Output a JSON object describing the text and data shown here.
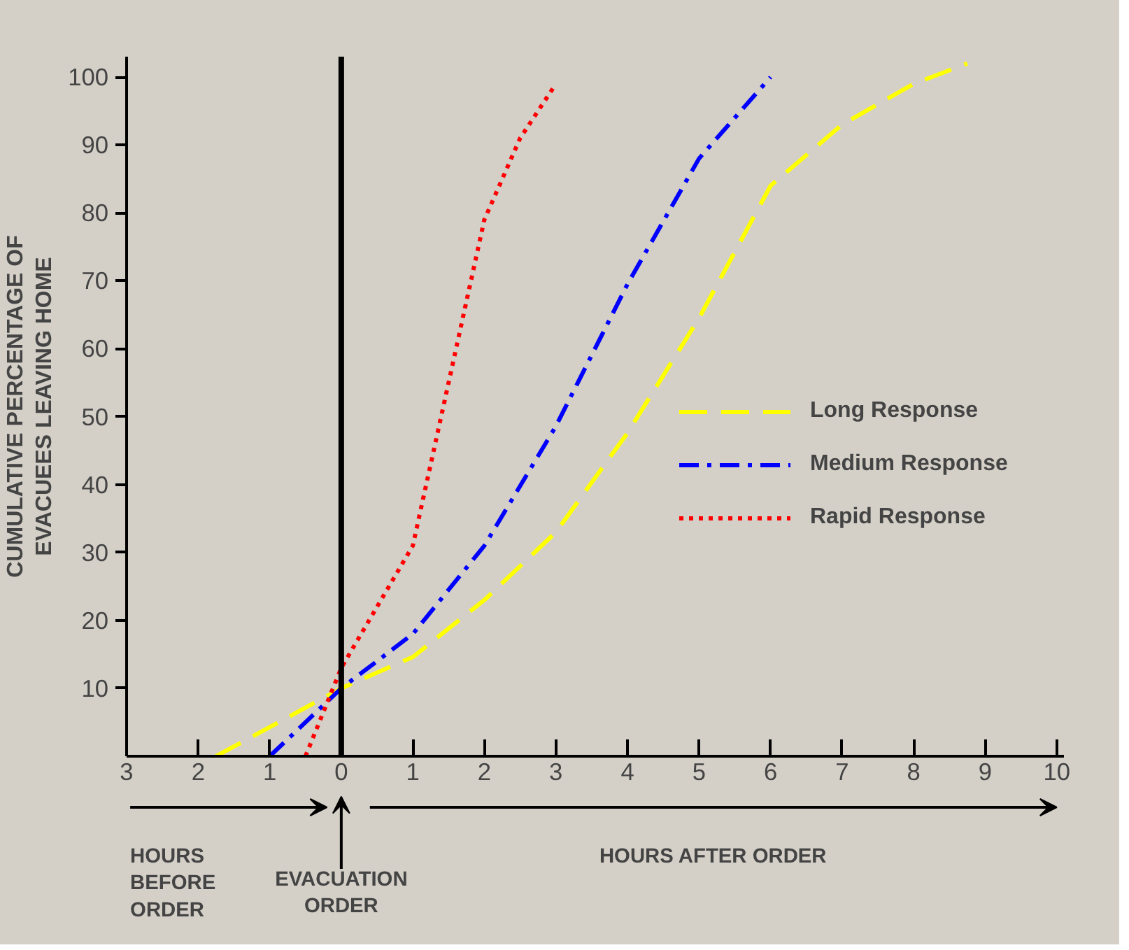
{
  "chart_data": {
    "type": "line",
    "ylabel": "CUMULATIVE PERCENTAGE OF\nEVACUEES LEAVING HOME",
    "xlim": [
      -3,
      10.1
    ],
    "ylim": [
      0,
      103
    ],
    "xticks": [
      {
        "value": -3,
        "label": "3"
      },
      {
        "value": -2,
        "label": "2"
      },
      {
        "value": -1,
        "label": "1"
      },
      0,
      {
        "value": 1,
        "label": "1"
      },
      2,
      3,
      4,
      5,
      6,
      7,
      8,
      9,
      10
    ],
    "yticks": [
      10,
      20,
      30,
      40,
      50,
      60,
      70,
      80,
      90,
      100
    ],
    "grid": false,
    "legend": "right",
    "marker": "none",
    "series": [
      {
        "name": "Long Response",
        "color": "#ffff00",
        "line_style": "dashed",
        "x": [
          -1.75,
          0,
          1,
          2,
          3,
          4,
          5,
          6,
          7,
          8,
          8.75
        ],
        "values": [
          0,
          10,
          14.6,
          23,
          33,
          47.6,
          64.5,
          84,
          93,
          99,
          102
        ]
      },
      {
        "name": "Medium Response",
        "color": "#0000ff",
        "line_style": "dashdot",
        "x": [
          -1,
          0,
          1,
          2,
          3,
          4,
          5,
          6
        ],
        "values": [
          0,
          10,
          18,
          31,
          48.6,
          69.5,
          88,
          100
        ]
      },
      {
        "name": "Rapid Response",
        "color": "#ff0000",
        "line_style": "dotted",
        "x": [
          -0.5,
          0,
          1,
          2,
          2.5,
          3
        ],
        "values": [
          0,
          13,
          31,
          79,
          91,
          99
        ]
      }
    ],
    "ref_lines": [
      {
        "axis": "x",
        "value": 0,
        "label": null,
        "color": "#000000"
      }
    ],
    "annotations": [
      "HOURS BEFORE ORDER",
      "EVACUATION ORDER",
      "HOURS AFTER ORDER"
    ]
  }
}
